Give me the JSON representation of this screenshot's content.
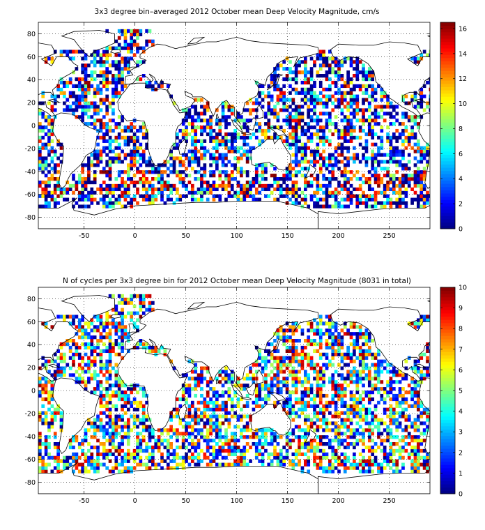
{
  "panels": [
    {
      "title": "3x3 degree bin–averaged 2012 October mean Deep Velocity Magnitude, cm/s",
      "colorbar": {
        "min": 0,
        "max": 16.5,
        "ticks": [
          "0",
          "2",
          "4",
          "6",
          "8",
          "10",
          "12",
          "14",
          "16"
        ],
        "tick_values": [
          0,
          2,
          4,
          6,
          8,
          10,
          12,
          14,
          16
        ]
      },
      "xticks": [
        "-50",
        "0",
        "50",
        "100",
        "150",
        "200",
        "250"
      ],
      "yticks": [
        "80",
        "60",
        "40",
        "20",
        "0",
        "-20",
        "-40",
        "-60",
        "-80"
      ]
    },
    {
      "title": "N of cycles per 3x3 degree bin for 2012 October mean Deep Velocity Magnitude (8031 in total)",
      "colorbar": {
        "min": 0,
        "max": 10,
        "ticks": [
          "0",
          "1",
          "2",
          "3",
          "4",
          "5",
          "6",
          "7",
          "8",
          "9",
          "10"
        ],
        "tick_values": [
          0,
          1,
          2,
          3,
          4,
          5,
          6,
          7,
          8,
          9,
          10
        ]
      },
      "xticks": [
        "-50",
        "0",
        "50",
        "100",
        "150",
        "200",
        "250"
      ],
      "yticks": [
        "80",
        "60",
        "40",
        "20",
        "0",
        "-20",
        "-40",
        "-60",
        "-80"
      ]
    }
  ],
  "chart_data": [
    {
      "type": "heatmap",
      "title": "3x3 degree bin–averaged 2012 October mean Deep Velocity Magnitude, cm/s",
      "xlim": [
        -95,
        290
      ],
      "ylim": [
        -90,
        90
      ],
      "bin_size_deg": 3,
      "x_ticks": [
        -50,
        0,
        50,
        100,
        150,
        200,
        250
      ],
      "y_ticks": [
        80,
        60,
        40,
        20,
        0,
        -20,
        -40,
        -60,
        -80
      ],
      "colorbar": {
        "range": [
          0,
          16.5
        ],
        "colormap": "jet"
      },
      "grid": true,
      "coastlines": true
    },
    {
      "type": "heatmap",
      "title": "N of cycles per 3x3 degree bin for 2012 October mean Deep Velocity Magnitude (8031 in total)",
      "xlim": [
        -95,
        290
      ],
      "ylim": [
        -90,
        90
      ],
      "bin_size_deg": 3,
      "x_ticks": [
        -50,
        0,
        50,
        100,
        150,
        200,
        250
      ],
      "y_ticks": [
        80,
        60,
        40,
        20,
        0,
        -20,
        -40,
        -60,
        -80
      ],
      "colorbar": {
        "range": [
          0,
          10
        ],
        "colormap": "jet"
      },
      "grid": true,
      "coastlines": true
    }
  ]
}
